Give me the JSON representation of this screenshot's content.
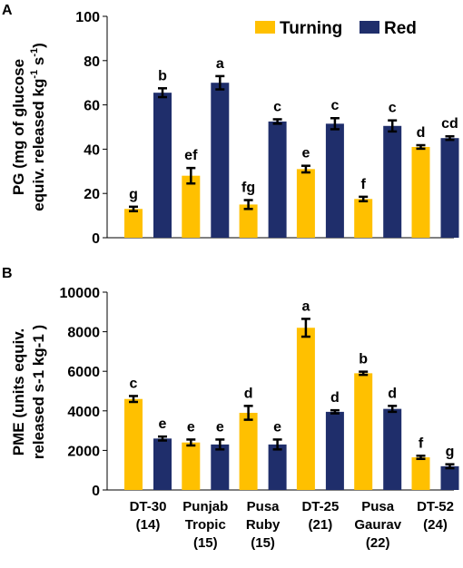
{
  "colors": {
    "turning": "#FFC000",
    "red": "#1F2E6B",
    "axis": "#000000"
  },
  "legend": [
    "Turning",
    "Red"
  ],
  "categories": [
    [
      "DT-30",
      "(14)"
    ],
    [
      "Punjab",
      "Tropic",
      "(15)"
    ],
    [
      "Pusa",
      "Ruby",
      "(15)"
    ],
    [
      "DT-25",
      "(21)"
    ],
    [
      "Pusa",
      "Gaurav",
      "(22)"
    ],
    [
      "DT-52",
      "(24)"
    ]
  ],
  "chart_data": [
    {
      "panel": "A",
      "type": "bar",
      "ylabel": [
        "PG (mg of glucose",
        "equiv. released kg",
        "-1",
        " s",
        "-1",
        ")"
      ],
      "ylim": [
        0,
        100
      ],
      "yticks": [
        0,
        20,
        40,
        60,
        80,
        100
      ],
      "legend_placement": "top-right",
      "series": [
        {
          "name": "Turning",
          "values": [
            13,
            28,
            15,
            31,
            17.5,
            41
          ],
          "errors": [
            1,
            3.5,
            2,
            1.5,
            1,
            0.8
          ],
          "labels": [
            "g",
            "ef",
            "fg",
            "e",
            "f",
            "d"
          ]
        },
        {
          "name": "Red",
          "values": [
            65.5,
            70,
            52.5,
            51.5,
            50.5,
            45
          ],
          "errors": [
            2,
            3,
            1,
            2.5,
            2.5,
            0.8
          ],
          "labels": [
            "b",
            "a",
            "c",
            "c",
            "c",
            "cd"
          ]
        }
      ]
    },
    {
      "panel": "B",
      "type": "bar",
      "ylabel": [
        "PME (units equiv.",
        "released s-1 kg-1 )"
      ],
      "ylim": [
        0,
        10000
      ],
      "yticks": [
        0,
        2000,
        4000,
        6000,
        8000,
        10000
      ],
      "series": [
        {
          "name": "Turning",
          "values": [
            4600,
            2400,
            3900,
            8200,
            5900,
            1650
          ],
          "errors": [
            150,
            150,
            350,
            450,
            80,
            80
          ],
          "labels": [
            "c",
            "e",
            "d",
            "a",
            "b",
            "f"
          ]
        },
        {
          "name": "Red",
          "values": [
            2600,
            2300,
            2300,
            3950,
            4100,
            1200
          ],
          "errors": [
            100,
            250,
            250,
            80,
            150,
            100
          ],
          "labels": [
            "e",
            "e",
            "e",
            "d",
            "d",
            "g"
          ]
        }
      ]
    }
  ]
}
